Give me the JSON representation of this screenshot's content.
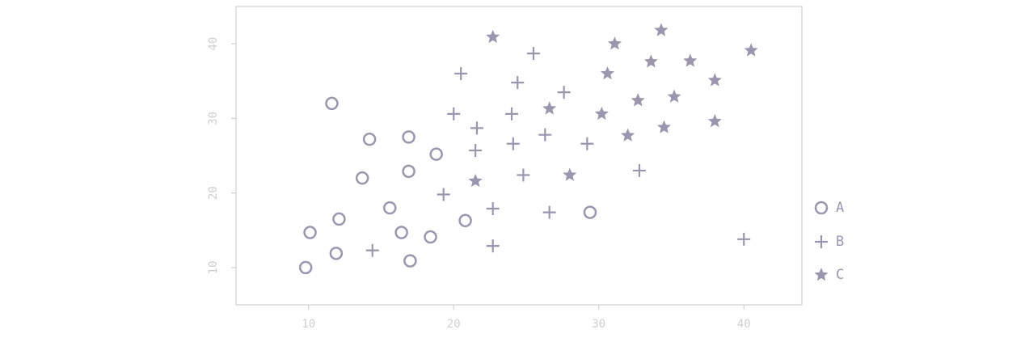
{
  "chart_data": {
    "type": "scatter",
    "xlim": [
      5,
      44
    ],
    "ylim": [
      5,
      45
    ],
    "x_ticks": [
      10,
      20,
      30,
      40
    ],
    "y_ticks": [
      10,
      20,
      30,
      40
    ],
    "x_tick_labels": [
      "10",
      "20",
      "30",
      "40"
    ],
    "y_tick_labels": [
      "10",
      "20",
      "30",
      "40"
    ],
    "grid": false,
    "legend_position": "right",
    "marker_color": "#9b96ae",
    "series": [
      {
        "name": "A",
        "marker": "circle",
        "points": [
          [
            9.8,
            10.0
          ],
          [
            10.1,
            14.7
          ],
          [
            11.9,
            11.9
          ],
          [
            12.1,
            16.5
          ],
          [
            11.6,
            32.0
          ],
          [
            13.7,
            22.0
          ],
          [
            14.2,
            27.2
          ],
          [
            15.6,
            18.0
          ],
          [
            16.4,
            14.7
          ],
          [
            16.9,
            22.9
          ],
          [
            16.9,
            27.5
          ],
          [
            17.0,
            10.9
          ],
          [
            18.4,
            14.1
          ],
          [
            18.8,
            25.2
          ],
          [
            20.8,
            16.3
          ],
          [
            29.4,
            17.4
          ]
        ]
      },
      {
        "name": "B",
        "marker": "plus",
        "points": [
          [
            14.4,
            12.3
          ],
          [
            19.3,
            19.8
          ],
          [
            20.0,
            30.6
          ],
          [
            20.5,
            36.0
          ],
          [
            21.5,
            25.7
          ],
          [
            21.6,
            28.7
          ],
          [
            22.7,
            17.9
          ],
          [
            22.7,
            12.9
          ],
          [
            24.0,
            30.6
          ],
          [
            24.1,
            26.6
          ],
          [
            24.4,
            34.8
          ],
          [
            24.8,
            22.4
          ],
          [
            25.5,
            38.7
          ],
          [
            26.3,
            27.8
          ],
          [
            26.6,
            17.4
          ],
          [
            27.6,
            33.5
          ],
          [
            29.2,
            26.6
          ],
          [
            32.8,
            23.0
          ],
          [
            40.0,
            13.8
          ]
        ]
      },
      {
        "name": "C",
        "marker": "star",
        "points": [
          [
            21.5,
            21.6
          ],
          [
            22.7,
            40.9
          ],
          [
            26.6,
            31.3
          ],
          [
            28.0,
            22.4
          ],
          [
            30.2,
            30.6
          ],
          [
            30.6,
            36.0
          ],
          [
            31.1,
            40.0
          ],
          [
            32.0,
            27.7
          ],
          [
            32.7,
            32.4
          ],
          [
            33.6,
            37.6
          ],
          [
            34.3,
            41.8
          ],
          [
            34.5,
            28.8
          ],
          [
            35.2,
            32.9
          ],
          [
            36.3,
            37.7
          ],
          [
            38.0,
            35.1
          ],
          [
            38.0,
            29.6
          ],
          [
            40.5,
            39.1
          ]
        ]
      }
    ]
  }
}
